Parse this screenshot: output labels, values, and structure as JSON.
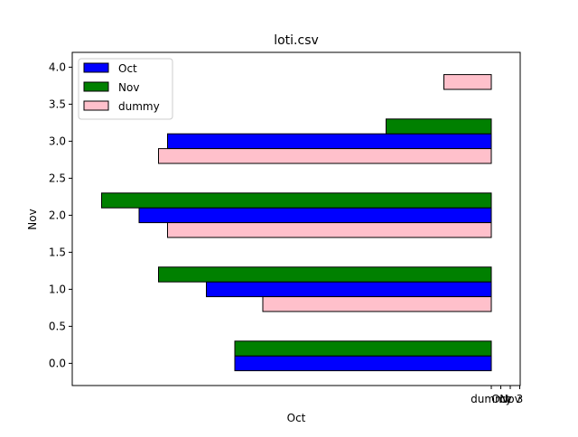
{
  "chart_data": {
    "type": "bar",
    "orientation": "horizontal",
    "title": "loti.csv",
    "xlabel": "Oct",
    "ylabel": "Nov",
    "ylim": [
      -0.3,
      4.2
    ],
    "yticks": [
      "0.0",
      "0.5",
      "1.0",
      "1.5",
      "2.0",
      "2.5",
      "3.0",
      "3.5",
      "4.0"
    ],
    "xticks": [
      "dummy",
      "Oct",
      "Nov",
      "3"
    ],
    "grid": false,
    "legend_position": "upper left",
    "note": "Bars extend leftward from the x-tick labelled 'dummy'; horizontal extents are given in axis-tick spacing units.",
    "series": [
      {
        "name": "Oct",
        "color": "#0000ff",
        "bars": [
          {
            "y": 0.0,
            "length": 54.1
          },
          {
            "y": 1.0,
            "length": 60.1
          },
          {
            "y": 2.0,
            "length": 74.3
          },
          {
            "y": 3.0,
            "length": 68.3
          }
        ]
      },
      {
        "name": "Nov",
        "color": "#008000",
        "bars": [
          {
            "y": 0.2,
            "length": 54.1
          },
          {
            "y": 1.2,
            "length": 70.2
          },
          {
            "y": 2.2,
            "length": 82.2
          },
          {
            "y": 3.2,
            "length": 22.2
          }
        ]
      },
      {
        "name": "dummy",
        "color": "#ffc0cb",
        "bars": [
          {
            "y": -0.2,
            "length": 0
          },
          {
            "y": 0.8,
            "length": 48.2
          },
          {
            "y": 1.8,
            "length": 68.3
          },
          {
            "y": 2.8,
            "length": 70.2
          },
          {
            "y": 3.8,
            "length": 10.0
          }
        ]
      }
    ]
  }
}
